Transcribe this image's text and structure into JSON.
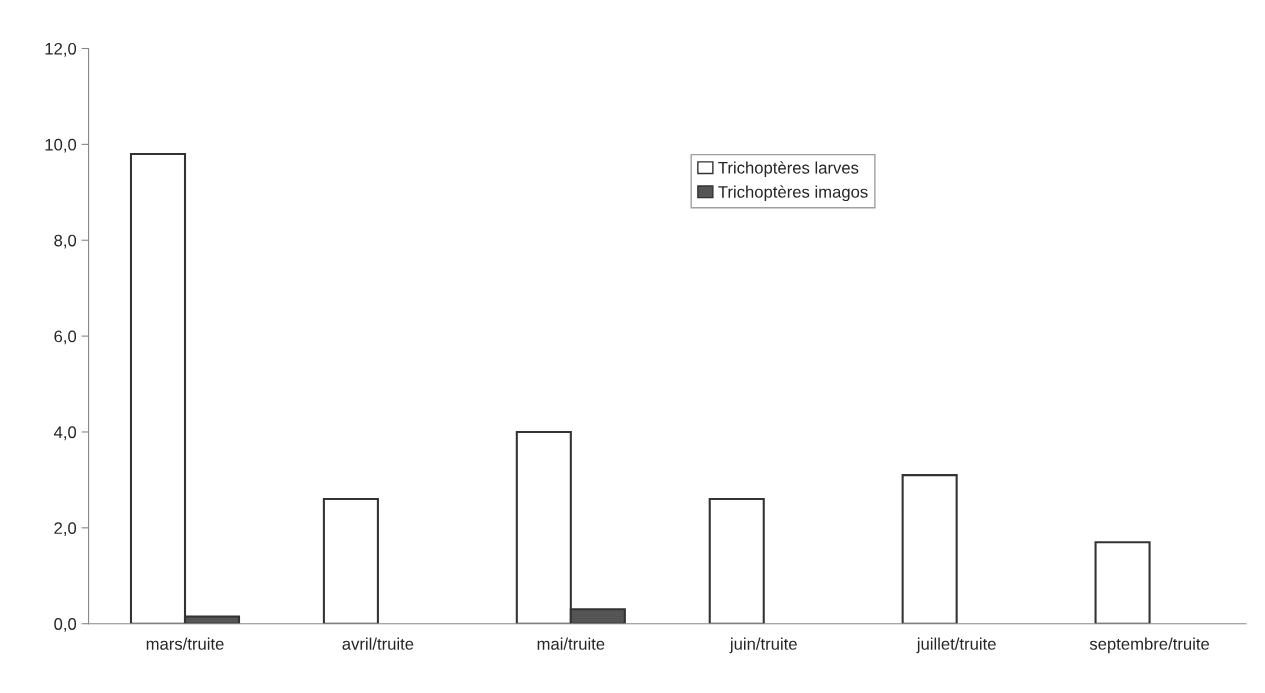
{
  "chart_data": {
    "type": "bar",
    "categories": [
      "mars/truite",
      "avril/truite",
      "mai/truite",
      "juin/truite",
      "juillet/truite",
      "septembre/truite"
    ],
    "series": [
      {
        "name": "Trichoptères larves",
        "color": "#ffffff",
        "values": [
          9.8,
          2.6,
          4.0,
          2.6,
          3.1,
          1.7
        ]
      },
      {
        "name": "Trichoptères imagos",
        "color": "#555555",
        "values": [
          0.15,
          null,
          0.3,
          null,
          null,
          null
        ]
      }
    ],
    "ylim": [
      0,
      12
    ],
    "yticks": [
      {
        "value": 0,
        "label": "0,0"
      },
      {
        "value": 2,
        "label": "2,0"
      },
      {
        "value": 4,
        "label": "4,0"
      },
      {
        "value": 6,
        "label": "6,0"
      },
      {
        "value": 8,
        "label": "8,0"
      },
      {
        "value": 10,
        "label": "10,0"
      },
      {
        "value": 12,
        "label": "12,0"
      }
    ],
    "grid": false,
    "legend": "top"
  }
}
